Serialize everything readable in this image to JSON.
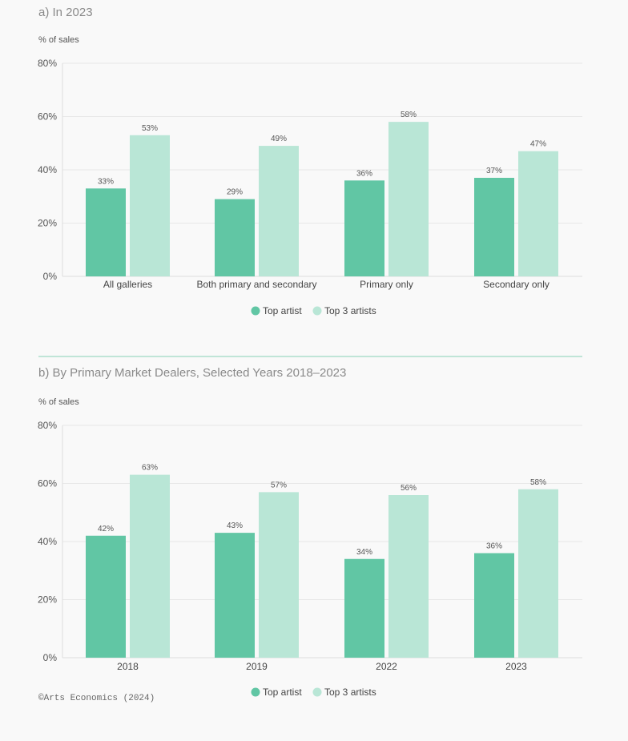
{
  "colors": {
    "top_artist": "#61c6a4",
    "top3_artists": "#b9e6d6",
    "grid": "#e8e8e8",
    "divider": "#9fd9c3"
  },
  "chart_data": [
    {
      "type": "bar",
      "title": "a) In 2023",
      "ylabel": "% of sales",
      "ylim": [
        0,
        80
      ],
      "yticks": [
        "0%",
        "20%",
        "40%",
        "60%",
        "80%"
      ],
      "categories": [
        "All galleries",
        "Both  primary and secondary",
        "Primary only",
        "Secondary only"
      ],
      "series": [
        {
          "name": "Top artist",
          "values": [
            33,
            29,
            36,
            37
          ],
          "labels": [
            "33%",
            "29%",
            "36%",
            "37%"
          ]
        },
        {
          "name": "Top 3 artists",
          "values": [
            53,
            49,
            58,
            47
          ],
          "labels": [
            "53%",
            "49%",
            "58%",
            "47%"
          ]
        }
      ],
      "legend": "bottom-center",
      "grid": true
    },
    {
      "type": "bar",
      "title": "b) By Primary Market Dealers, Selected Years 2018–2023",
      "ylabel": "% of sales",
      "ylim": [
        0,
        80
      ],
      "yticks": [
        "0%",
        "20%",
        "40%",
        "60%",
        "80%"
      ],
      "categories": [
        "2018",
        "2019",
        "2022",
        "2023"
      ],
      "series": [
        {
          "name": "Top artist",
          "values": [
            42,
            43,
            34,
            36
          ],
          "labels": [
            "42%",
            "43%",
            "34%",
            "36%"
          ]
        },
        {
          "name": "Top 3 artists",
          "values": [
            63,
            57,
            56,
            58
          ],
          "labels": [
            "63%",
            "57%",
            "56%",
            "58%"
          ]
        }
      ],
      "legend": "bottom-center",
      "grid": true
    }
  ],
  "source": "©Arts Economics (2024)"
}
